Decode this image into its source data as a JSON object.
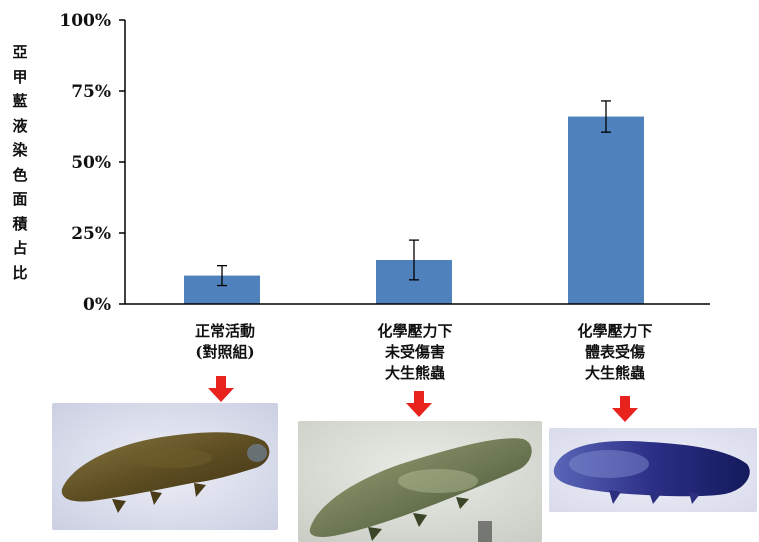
{
  "chart_data": {
    "type": "bar",
    "ylabel": "亞甲藍液染色面積占比",
    "ylim": [
      0,
      100
    ],
    "yticks": [
      "0%",
      "25%",
      "50%",
      "75%",
      "100%"
    ],
    "categories": [
      [
        "正常活動",
        "(對照組)"
      ],
      [
        "化學壓力下",
        "未受傷害",
        "大生熊蟲"
      ],
      [
        "化學壓力下",
        "體表受傷",
        "大生熊蟲"
      ]
    ],
    "values": [
      10,
      15.5,
      66
    ],
    "errors": [
      3.5,
      7,
      5.5
    ],
    "bar_color": "#4f81bd",
    "grid": false
  },
  "images": [
    {
      "name": "tardigrade-control-photo",
      "stain": "brown"
    },
    {
      "name": "tardigrade-uninjured-photo",
      "stain": "green"
    },
    {
      "name": "tardigrade-injured-photo",
      "stain": "blue"
    }
  ],
  "arrow_color": "#e8231e"
}
